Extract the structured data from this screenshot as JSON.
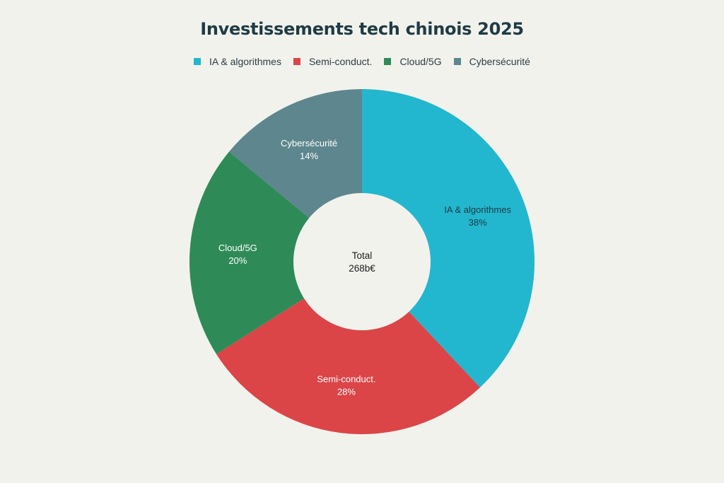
{
  "chart_data": {
    "type": "pie",
    "title": "Investissements tech chinois 2025",
    "center_label": {
      "line1": "Total",
      "line2": "268b€"
    },
    "legend_position": "top",
    "categories": [
      "IA & algorithmes",
      "Semi-conduct.",
      "Cloud/5G",
      "Cybersécurité"
    ],
    "values": [
      38,
      28,
      20,
      14
    ],
    "value_labels": [
      "38%",
      "28%",
      "20%",
      "14%"
    ],
    "colors": [
      "#22b7cf",
      "#db4548",
      "#2e8b57",
      "#5e868e"
    ],
    "label_colors": [
      "#1f3b44",
      "#ffffff",
      "#ffffff",
      "#ffffff"
    ]
  }
}
